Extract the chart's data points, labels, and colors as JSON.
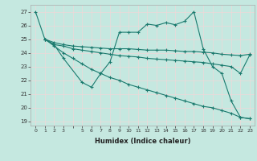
{
  "xlabel": "Humidex (Indice chaleur)",
  "xlim": [
    -0.5,
    23.5
  ],
  "ylim": [
    18.7,
    27.5
  ],
  "yticks": [
    19,
    20,
    21,
    22,
    23,
    24,
    25,
    26,
    27
  ],
  "bg_color": "#c5e8e0",
  "grid_color": "#e8f5f0",
  "line_color": "#1a7a6e",
  "line1_x": [
    0,
    1,
    2,
    3,
    5,
    6,
    7,
    8,
    9,
    10,
    11,
    12,
    13,
    14,
    15,
    16,
    17,
    18,
    19,
    20,
    21,
    22,
    23
  ],
  "line1_y": [
    27.0,
    25.0,
    24.6,
    23.6,
    21.85,
    21.5,
    22.5,
    23.35,
    25.5,
    25.5,
    25.5,
    26.1,
    26.0,
    26.2,
    26.05,
    26.3,
    27.0,
    24.3,
    23.0,
    22.5,
    20.5,
    19.3,
    19.2
  ],
  "line2_x": [
    1,
    2,
    3,
    4,
    5,
    6,
    7,
    8,
    9,
    10,
    11,
    12,
    13,
    14,
    15,
    16,
    17,
    18,
    19,
    20,
    21,
    22,
    23
  ],
  "line2_y": [
    25.0,
    24.75,
    24.6,
    24.5,
    24.45,
    24.4,
    24.35,
    24.3,
    24.3,
    24.3,
    24.25,
    24.2,
    24.2,
    24.2,
    24.15,
    24.1,
    24.1,
    24.05,
    24.0,
    23.9,
    23.85,
    23.8,
    23.9
  ],
  "line3_x": [
    1,
    2,
    3,
    4,
    5,
    6,
    7,
    8,
    9,
    10,
    11,
    12,
    13,
    14,
    15,
    16,
    17,
    18,
    19,
    20,
    21,
    22,
    23
  ],
  "line3_y": [
    25.0,
    24.6,
    24.5,
    24.3,
    24.2,
    24.1,
    24.0,
    23.9,
    23.8,
    23.75,
    23.7,
    23.6,
    23.55,
    23.5,
    23.45,
    23.4,
    23.35,
    23.3,
    23.2,
    23.1,
    23.0,
    22.5,
    23.85
  ],
  "line4_x": [
    1,
    2,
    3,
    4,
    5,
    6,
    7,
    8,
    9,
    10,
    11,
    12,
    13,
    14,
    15,
    16,
    17,
    18,
    19,
    20,
    21,
    22,
    23
  ],
  "line4_y": [
    25.0,
    24.5,
    24.0,
    23.6,
    23.2,
    22.8,
    22.5,
    22.2,
    22.0,
    21.7,
    21.5,
    21.3,
    21.1,
    20.9,
    20.7,
    20.5,
    20.3,
    20.1,
    20.0,
    19.8,
    19.6,
    19.3,
    19.2
  ]
}
